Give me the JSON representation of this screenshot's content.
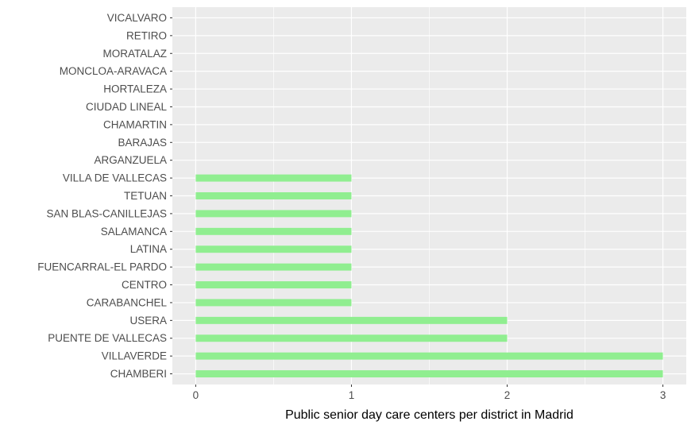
{
  "chart_data": {
    "type": "bar",
    "orientation": "horizontal",
    "categories": [
      "CHAMBERI",
      "VILLAVERDE",
      "PUENTE DE VALLECAS",
      "USERA",
      "CARABANCHEL",
      "CENTRO",
      "FUENCARRAL-EL PARDO",
      "LATINA",
      "SALAMANCA",
      "SAN BLAS-CANILLEJAS",
      "TETUAN",
      "VILLA DE VALLECAS",
      "ARGANZUELA",
      "BARAJAS",
      "CHAMARTIN",
      "CIUDAD LINEAL",
      "HORTALEZA",
      "MONCLOA-ARAVACA",
      "MORATALAZ",
      "RETIRO",
      "VICALVARO"
    ],
    "values": [
      3,
      3,
      2,
      2,
      1,
      1,
      1,
      1,
      1,
      1,
      1,
      1,
      0,
      0,
      0,
      0,
      0,
      0,
      0,
      0,
      0
    ],
    "title": "",
    "xlabel": "Public senior day care centers per district in Madrid",
    "ylabel": "",
    "xlim": [
      -0.15,
      3.15
    ],
    "xticks": [
      "0",
      "1",
      "2",
      "3"
    ],
    "bar_color": "#90ee90",
    "panel_background": "#ebebeb",
    "grid_color": "#ffffff",
    "grid": true,
    "legend": "none"
  }
}
